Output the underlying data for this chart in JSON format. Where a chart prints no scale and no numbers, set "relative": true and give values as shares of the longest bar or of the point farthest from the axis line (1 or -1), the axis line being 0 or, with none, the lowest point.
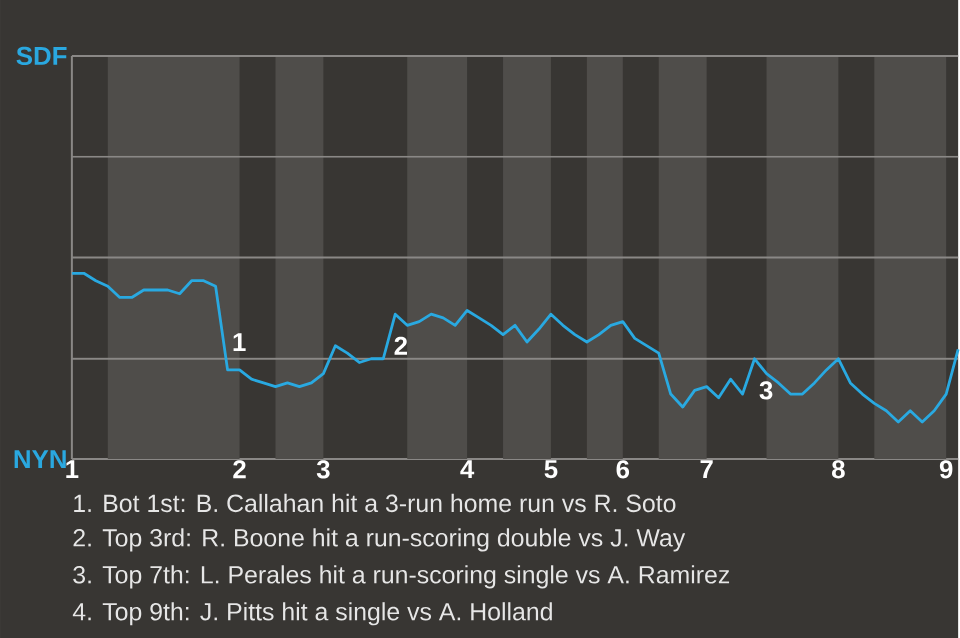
{
  "chart_data": {
    "type": "line",
    "categories": [
      "1",
      null,
      null,
      null,
      null,
      null,
      null,
      null,
      null,
      null,
      null,
      null,
      null,
      null,
      "2",
      null,
      null,
      null,
      null,
      null,
      null,
      "3",
      null,
      null,
      null,
      null,
      null,
      null,
      null,
      null,
      null,
      null,
      null,
      "4",
      null,
      null,
      null,
      null,
      null,
      null,
      "5",
      null,
      null,
      null,
      null,
      null,
      "6",
      null,
      null,
      null,
      null,
      null,
      null,
      "7",
      null,
      null,
      null,
      null,
      null,
      null,
      null,
      null,
      null,
      null,
      "8",
      null,
      null,
      null,
      null,
      null,
      null,
      null,
      null,
      "9",
      null
    ],
    "series": [
      {
        "color": "#29a9e1",
        "values": [
          1.0,
          1.0,
          0.96,
          0.93,
          0.87,
          0.87,
          0.91,
          0.91,
          0.91,
          0.89,
          0.96,
          0.96,
          0.93,
          0.48,
          0.48,
          0.43,
          0.41,
          0.39,
          0.41,
          0.39,
          0.41,
          0.46,
          0.61,
          0.57,
          0.52,
          0.54,
          0.54,
          0.78,
          0.72,
          0.74,
          0.78,
          0.76,
          0.72,
          0.8,
          0.76,
          0.72,
          0.67,
          0.72,
          0.63,
          0.7,
          0.78,
          0.72,
          0.67,
          0.63,
          0.67,
          0.72,
          0.74,
          0.65,
          0.61,
          0.57,
          0.35,
          0.28,
          0.37,
          0.39,
          0.33,
          0.43,
          0.35,
          0.54,
          0.46,
          0.41,
          0.35,
          0.35,
          0.41,
          0.48,
          0.54,
          0.41,
          0.35,
          0.3,
          0.26,
          0.2,
          0.26,
          0.2,
          0.26,
          0.35,
          0.59
        ]
      }
    ],
    "relative": true,
    "ref_lines": [
      {
        "axis": "y",
        "value": 0.54,
        "color": "#8a8886"
      }
    ],
    "annotations": [
      "SDF",
      "NYN",
      "1",
      "2",
      "3",
      "1. Bot 1st: B. Callahan hit a 3-run home run vs R. Soto",
      "2. Top 3rd: R. Boone hit a run-scoring double vs J. Way",
      "3. Top 7th: L. Perales hit a run-scoring single vs A. Ramirez",
      "4. Top 9th: J. Pitts hit a single vs A. Holland"
    ]
  }
}
